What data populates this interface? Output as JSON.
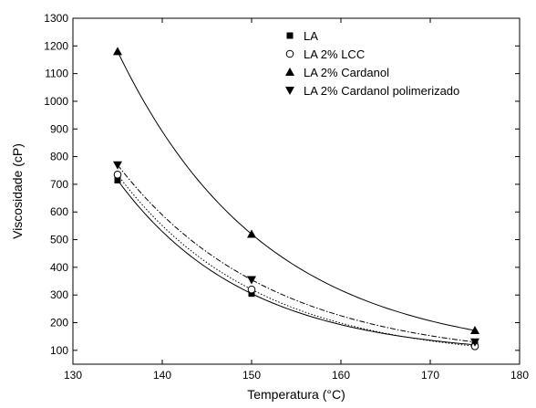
{
  "chart_data": {
    "type": "scatter",
    "xlabel": "Temperatura (°C)",
    "ylabel": "Viscosidade (cP)",
    "xlim": [
      130,
      180
    ],
    "ylim": [
      50,
      1300
    ],
    "xticks": [
      130,
      140,
      150,
      160,
      170,
      180
    ],
    "yticks": [
      100,
      200,
      300,
      400,
      500,
      600,
      700,
      800,
      900,
      1000,
      1100,
      1200,
      1300
    ],
    "grid": false,
    "legend_position": "top-right",
    "series": [
      {
        "name": "LA",
        "marker": "square-filled",
        "line": "solid",
        "x": [
          135,
          150,
          175
        ],
        "y": [
          715,
          305,
          120
        ]
      },
      {
        "name": "LA 2% LCC",
        "marker": "circle-open",
        "line": "dotted",
        "x": [
          135,
          150,
          175
        ],
        "y": [
          735,
          320,
          115
        ]
      },
      {
        "name": "LA 2% Cardanol",
        "marker": "triangle-up-filled",
        "line": "solid",
        "x": [
          135,
          150,
          175
        ],
        "y": [
          1180,
          520,
          172
        ]
      },
      {
        "name": "LA 2% Cardanol polimerizado",
        "marker": "triangle-down-filled",
        "line": "dashdot",
        "x": [
          135,
          150,
          175
        ],
        "y": [
          770,
          355,
          130
        ]
      }
    ]
  }
}
